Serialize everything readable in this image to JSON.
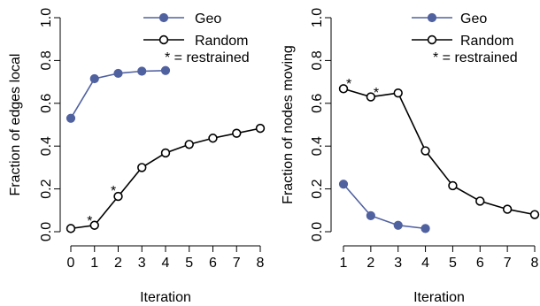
{
  "chart_data": [
    {
      "type": "line",
      "title": "",
      "xlabel": "Iteration",
      "ylabel": "Fraction of edges local",
      "xlim": [
        0,
        8
      ],
      "ylim": [
        0,
        1
      ],
      "xticks": [
        0,
        1,
        2,
        3,
        4,
        5,
        6,
        7,
        8
      ],
      "xtick_labels": [
        "0",
        "1",
        "2",
        "3",
        "4",
        "5",
        "6",
        "7",
        "8"
      ],
      "yticks": [
        0,
        0.2,
        0.4,
        0.6,
        0.8,
        1.0
      ],
      "ytick_labels": [
        "0.0",
        "0.2",
        "0.4",
        "0.6",
        "0.8",
        "1.0"
      ],
      "legend": {
        "position": "top-right",
        "note": "* = restrained"
      },
      "series": [
        {
          "name": "Geo",
          "color": "#5061a0",
          "marker": "filled-circle",
          "x": [
            0,
            1,
            2,
            3,
            4
          ],
          "y": [
            0.53,
            0.715,
            0.74,
            0.75,
            0.753
          ]
        },
        {
          "name": "Random",
          "color": "#000000",
          "marker": "open-circle",
          "x": [
            0,
            1,
            2,
            3,
            4,
            5,
            6,
            7,
            8
          ],
          "y": [
            0.015,
            0.03,
            0.165,
            0.3,
            0.368,
            0.408,
            0.437,
            0.46,
            0.483
          ]
        }
      ],
      "annotations": [
        {
          "text": "*",
          "x": 0.8,
          "y": 0.07
        },
        {
          "text": "*",
          "x": 1.8,
          "y": 0.21
        }
      ]
    },
    {
      "type": "line",
      "title": "",
      "xlabel": "Iteration",
      "ylabel": "Fraction of nodes moving",
      "xlim": [
        1,
        8
      ],
      "ylim": [
        0,
        1
      ],
      "xticks": [
        1,
        2,
        3,
        4,
        5,
        6,
        7,
        8
      ],
      "xtick_labels": [
        "1",
        "2",
        "3",
        "4",
        "5",
        "6",
        "7",
        "8"
      ],
      "yticks": [
        0,
        0.2,
        0.4,
        0.6,
        0.8,
        1.0
      ],
      "ytick_labels": [
        "0.0",
        "0.2",
        "0.4",
        "0.6",
        "0.8",
        "1.0"
      ],
      "legend": {
        "position": "top-right",
        "note": "* = restrained"
      },
      "series": [
        {
          "name": "Geo",
          "color": "#5061a0",
          "marker": "filled-circle",
          "x": [
            1,
            2,
            3,
            4
          ],
          "y": [
            0.222,
            0.075,
            0.03,
            0.015
          ]
        },
        {
          "name": "Random",
          "color": "#000000",
          "marker": "open-circle",
          "x": [
            1,
            2,
            3,
            4,
            5,
            6,
            7,
            8
          ],
          "y": [
            0.668,
            0.63,
            0.648,
            0.378,
            0.215,
            0.143,
            0.105,
            0.08
          ]
        }
      ],
      "annotations": [
        {
          "text": "*",
          "x": 1.2,
          "y": 0.71
        },
        {
          "text": "*",
          "x": 2.2,
          "y": 0.67
        }
      ]
    }
  ]
}
